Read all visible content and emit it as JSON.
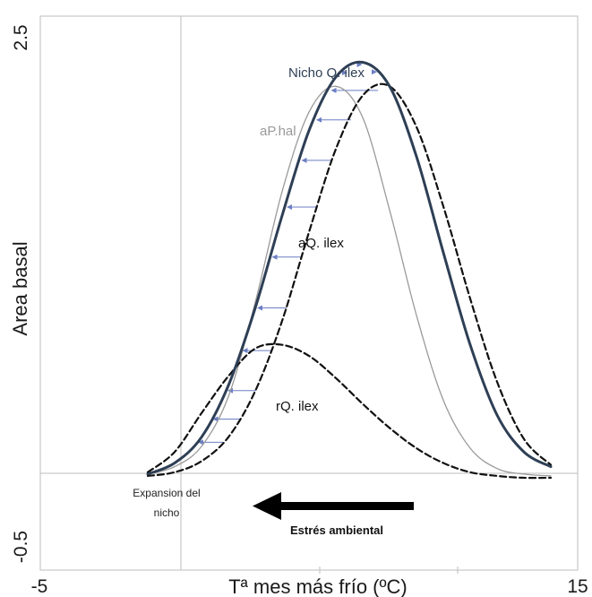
{
  "chart_data": {
    "type": "line",
    "xlabel": "Tª mes más frío (ºC)",
    "ylabel": "Area basal",
    "xlim": [
      -5,
      15
    ],
    "ylim": [
      -0.5,
      2.5
    ],
    "x_ticks": [
      "-5",
      "15"
    ],
    "y_ticks": [
      "2.5",
      "-0.5"
    ],
    "grid": false,
    "series": [
      {
        "name": "Nicho Q. ilex",
        "color": "#2e3f55",
        "style": "solid-thick",
        "x": [
          -1,
          0,
          1,
          2,
          3,
          4,
          5,
          6,
          7,
          8,
          9,
          10,
          11,
          12,
          13,
          14
        ],
        "y": [
          0.02,
          0.08,
          0.22,
          0.5,
          0.92,
          1.42,
          1.88,
          2.17,
          2.25,
          2.12,
          1.74,
          1.22,
          0.72,
          0.34,
          0.14,
          0.06
        ]
      },
      {
        "name": "aP.hal",
        "color": "#9a9a9a",
        "style": "solid-thin",
        "x": [
          -1,
          0,
          1,
          2,
          3,
          4,
          5,
          6,
          7,
          8,
          9,
          10,
          11,
          12,
          13,
          14
        ],
        "y": [
          0.02,
          0.06,
          0.17,
          0.44,
          0.95,
          1.55,
          1.98,
          2.12,
          1.95,
          1.45,
          0.88,
          0.42,
          0.16,
          0.05,
          0.02,
          0.01
        ]
      },
      {
        "name": "aQ. ilex",
        "color": "#111111",
        "style": "dashed",
        "x": [
          -1,
          0,
          1,
          2,
          3,
          4,
          5,
          6,
          7,
          8,
          9,
          10,
          11,
          12,
          13,
          14
        ],
        "y": [
          0.01,
          0.03,
          0.09,
          0.22,
          0.47,
          0.85,
          1.33,
          1.78,
          2.07,
          2.12,
          1.9,
          1.47,
          0.97,
          0.52,
          0.21,
          0.07
        ]
      },
      {
        "name": "rQ. ilex",
        "color": "#111111",
        "style": "dashed",
        "x": [
          -1,
          0,
          1,
          2,
          3,
          4,
          5,
          6,
          7,
          8,
          9,
          10,
          11,
          12,
          13,
          14
        ],
        "y": [
          0.03,
          0.14,
          0.35,
          0.55,
          0.7,
          0.72,
          0.66,
          0.54,
          0.4,
          0.27,
          0.16,
          0.08,
          0.03,
          0.01,
          0.0,
          0.0
        ]
      }
    ],
    "niche_arrows_color": "#6b7fc4",
    "annotations": {
      "expansion": [
        "Expansion del",
        "nicho"
      ],
      "stress": "Estrés ambiental"
    }
  }
}
